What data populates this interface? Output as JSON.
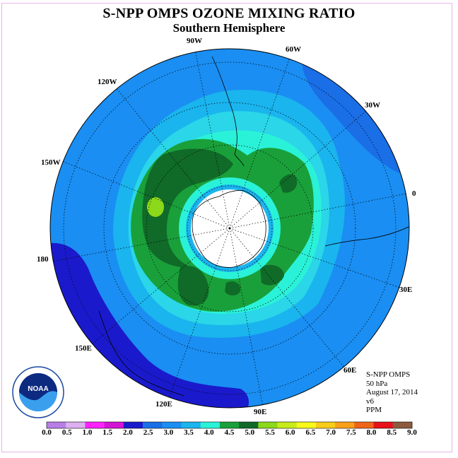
{
  "title": "S-NPP OMPS OZONE MIXING RATIO",
  "subtitle": "Southern Hemisphere",
  "longitude_labels": [
    "90W",
    "60W",
    "30W",
    "0",
    "30E",
    "60E",
    "90E",
    "120E",
    "150E",
    "180",
    "150W",
    "120W"
  ],
  "info": {
    "instrument": "S-NPP OMPS",
    "level": "50 hPa",
    "date": "August 17, 2014",
    "version": "v6",
    "units": "PPM"
  },
  "logo": {
    "text": "NOAA",
    "icon": "noaa-logo-icon"
  },
  "colorbar": {
    "ticks": [
      "0.0",
      "0.5",
      "1.0",
      "1.5",
      "2.0",
      "2.5",
      "3.0",
      "3.5",
      "4.0",
      "4.5",
      "5.0",
      "5.5",
      "6.0",
      "6.5",
      "7.0",
      "7.5",
      "8.0",
      "8.5",
      "9.0"
    ],
    "colors": [
      "#b87ee6",
      "#dcb0f0",
      "#ff22ff",
      "#d414d4",
      "#1a1acc",
      "#1a6ee6",
      "#1a8ef2",
      "#1ab4ee",
      "#2af2d8",
      "#1aa03a",
      "#106a28",
      "#8cd81a",
      "#c8ec1a",
      "#f8f81a",
      "#f8cc1a",
      "#f8a01a",
      "#f0641a",
      "#e8101a",
      "#8c5a3c"
    ]
  },
  "map": {
    "projection": "south-polar-stereographic",
    "background_color": "#1a8ef2",
    "pole_color": "#ffffff"
  }
}
